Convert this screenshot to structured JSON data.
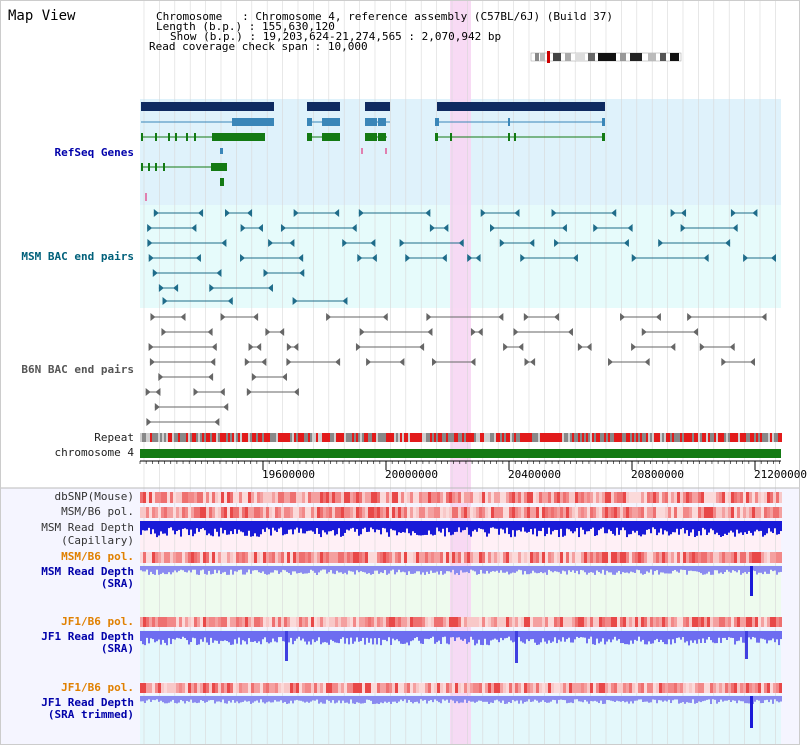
{
  "app": {
    "title": "Map View"
  },
  "info": {
    "chromosome_key": "Chromosome",
    "chromosome_value": "Chromosome 4, reference assembly (C57BL/6J) (Build 37)",
    "length_key": "Length (b.p.)",
    "length_value": "155,630,120",
    "show_key": "Show (b.p.)",
    "show_value": "19,203,624-21,274,565 : 2,070,942 bp",
    "coverage_key": "Read coverage check span",
    "coverage_value": "10,000"
  },
  "tracks": {
    "refseq": "RefSeq Genes",
    "msm_bac": "MSM BAC end pairs",
    "b6n_bac": "B6N BAC end pairs",
    "repeat": "Repeat",
    "chromosome": "chromosome 4",
    "dbsnp": "dbSNP(Mouse)",
    "msm_b6_pol_1": "MSM/B6 pol.",
    "msm_read_depth_cap_1": "MSM Read Depth",
    "msm_read_depth_cap_2": "(Capillary)",
    "msm_b6_pol_2": "MSM/B6 pol.",
    "msm_read_depth_sra_1": "MSM Read Depth",
    "msm_read_depth_sra_2": "(SRA)",
    "jf1_b6_pol_1": "JF1/B6 pol.",
    "jf1_read_depth_sra_1": "JF1 Read Depth",
    "jf1_read_depth_sra_2": "(SRA)",
    "jf1_b6_pol_2": "JF1/B6 pol.",
    "jf1_read_depth_trim_1": "JF1 Read Depth",
    "jf1_read_depth_trim_2": "(SRA trimmed)"
  },
  "axis": {
    "ticks": [
      "19600000",
      "20000000",
      "20400000",
      "20800000",
      "21200000"
    ]
  },
  "colors": {
    "refseq_bg": "#dff2fb",
    "msm_bg": "#e6fbfb",
    "b6n_bg": "#ffffff",
    "highlight": "#f7d6f3",
    "navy": "#0e2a60",
    "steel": "#3a86b8",
    "green": "#137a13",
    "teal": "#1f6c8a",
    "gray": "#666666",
    "red": "#e21b1b",
    "depth_blue": "#1a1ad8",
    "depth_light": "#6d6df0"
  }
}
